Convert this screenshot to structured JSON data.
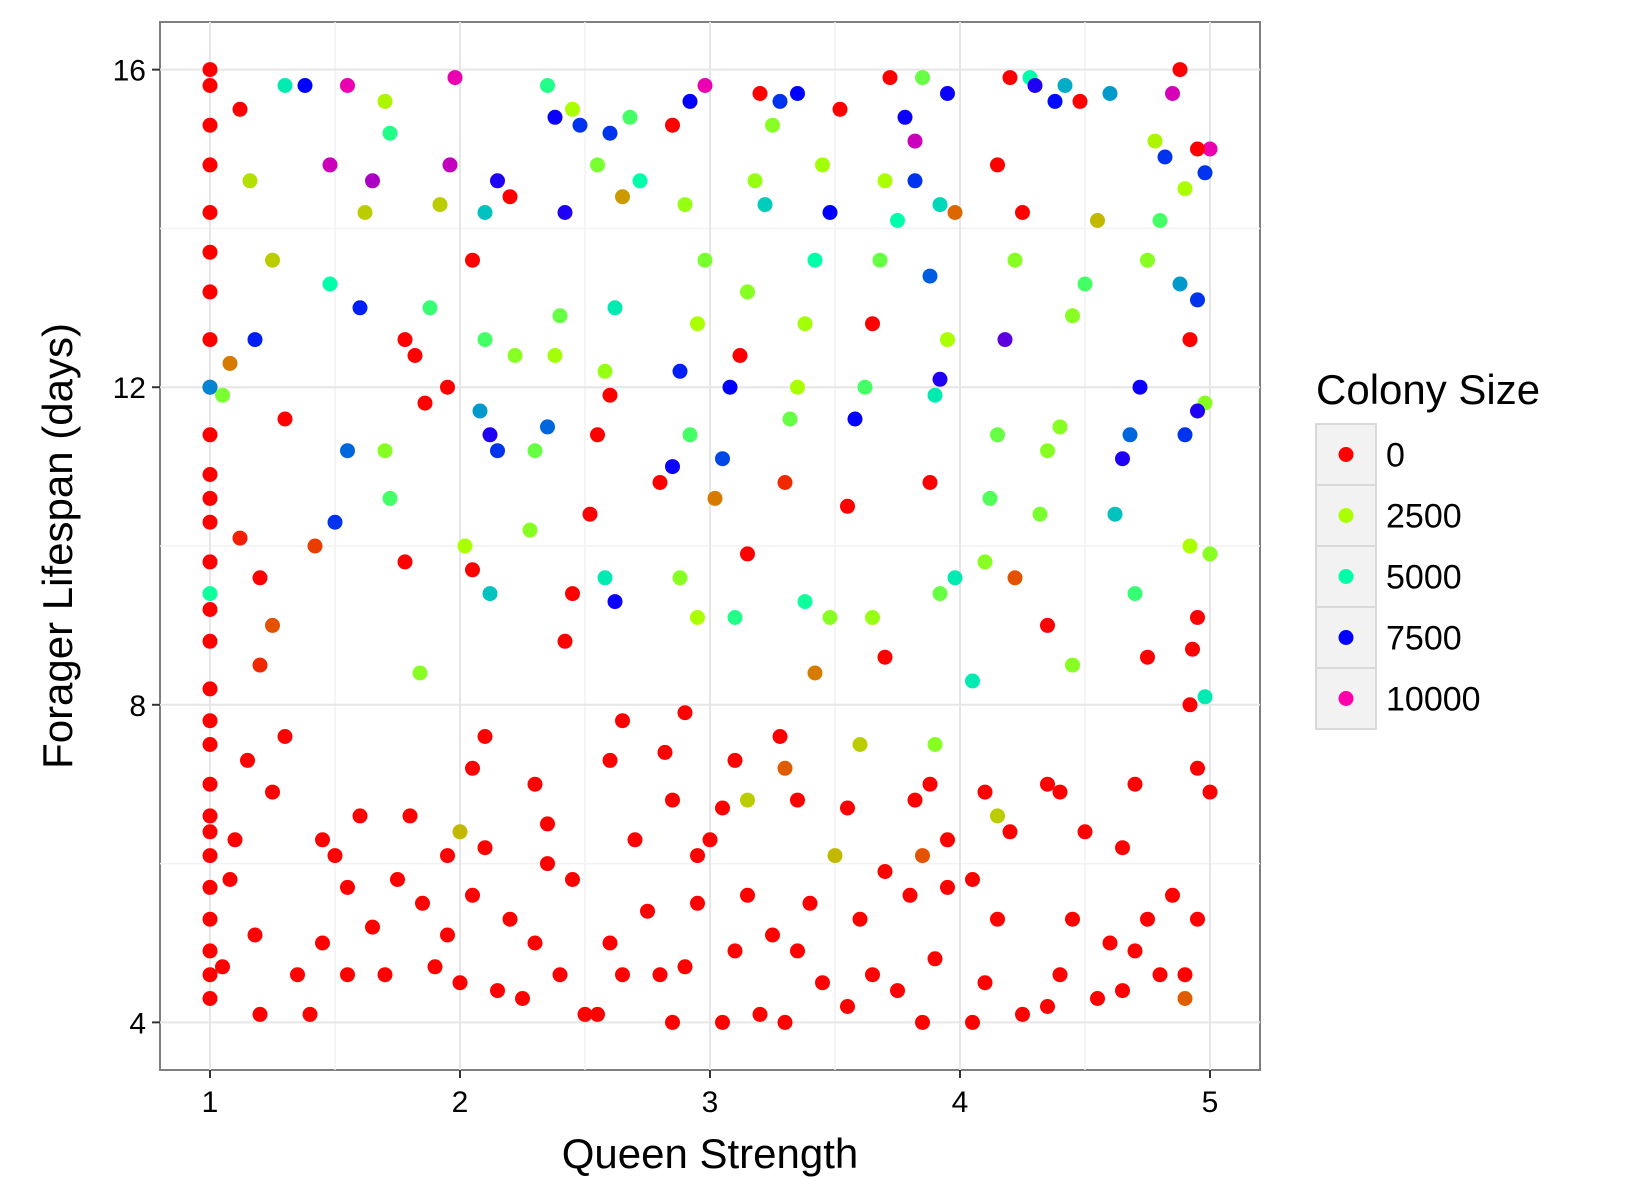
{
  "chart_data": {
    "type": "scatter",
    "title": "",
    "xlabel": "Queen Strength",
    "ylabel": "Forager Lifespan (days)",
    "xlim": [
      0.8,
      5.2
    ],
    "ylim": [
      3.4,
      16.6
    ],
    "x_ticks": [
      1,
      2,
      3,
      4,
      5
    ],
    "x_tick_labels": [
      "1",
      "2",
      "3",
      "4",
      "5"
    ],
    "y_ticks": [
      4,
      8,
      12,
      16
    ],
    "y_tick_labels": [
      "4",
      "8",
      "12",
      "16"
    ],
    "grid": true,
    "legend": {
      "title": "Colony Size",
      "placement": "right",
      "entries": [
        {
          "label": "0",
          "value": 0
        },
        {
          "label": "2500",
          "value": 2500
        },
        {
          "label": "5000",
          "value": 5000
        },
        {
          "label": "7500",
          "value": 7500
        },
        {
          "label": "10000",
          "value": 10000
        }
      ]
    },
    "color_scale": {
      "domain": [
        0,
        2500,
        5000,
        7500,
        10000
      ],
      "colors": [
        "#ff0000",
        "#aaff00",
        "#00ffaa",
        "#0000ff",
        "#ff00aa"
      ]
    },
    "points": [
      [
        1.0,
        4.3,
        0
      ],
      [
        1.0,
        4.9,
        0
      ],
      [
        1.0,
        5.3,
        0
      ],
      [
        1.0,
        5.7,
        0
      ],
      [
        1.0,
        6.1,
        0
      ],
      [
        1.0,
        6.6,
        0
      ],
      [
        1.0,
        7.0,
        0
      ],
      [
        1.0,
        7.5,
        0
      ],
      [
        1.0,
        8.2,
        0
      ],
      [
        1.0,
        8.8,
        0
      ],
      [
        1.0,
        9.2,
        0
      ],
      [
        1.0,
        9.8,
        0
      ],
      [
        1.0,
        10.3,
        0
      ],
      [
        1.0,
        10.9,
        0
      ],
      [
        1.0,
        11.4,
        0
      ],
      [
        1.0,
        12.0,
        0
      ],
      [
        1.0,
        12.6,
        0
      ],
      [
        1.0,
        13.2,
        0
      ],
      [
        1.0,
        13.7,
        0
      ],
      [
        1.0,
        14.2,
        0
      ],
      [
        1.0,
        14.8,
        0
      ],
      [
        1.0,
        15.3,
        0
      ],
      [
        1.0,
        15.8,
        0
      ],
      [
        1.0,
        16.0,
        0
      ],
      [
        1.0,
        9.4,
        4800
      ],
      [
        1.0,
        12.0,
        6200
      ],
      [
        1.0,
        4.6,
        0
      ],
      [
        1.0,
        6.4,
        0
      ],
      [
        1.0,
        7.8,
        0
      ],
      [
        1.0,
        10.6,
        0
      ],
      [
        1.05,
        4.7,
        0
      ],
      [
        1.08,
        5.8,
        0
      ],
      [
        1.1,
        6.3,
        0
      ],
      [
        1.15,
        7.3,
        0
      ],
      [
        1.18,
        5.1,
        0
      ],
      [
        1.2,
        4.1,
        0
      ],
      [
        1.25,
        6.9,
        0
      ],
      [
        1.3,
        7.6,
        0
      ],
      [
        1.12,
        15.5,
        0
      ],
      [
        1.16,
        14.6,
        2200
      ],
      [
        1.25,
        13.6,
        2000
      ],
      [
        1.3,
        15.8,
        5200
      ],
      [
        1.38,
        15.8,
        7500
      ],
      [
        1.18,
        12.6,
        7200
      ],
      [
        1.05,
        11.9,
        3200
      ],
      [
        1.08,
        12.3,
        1200
      ],
      [
        1.12,
        10.1,
        300
      ],
      [
        1.2,
        9.6,
        0
      ],
      [
        1.25,
        9.0,
        800
      ],
      [
        1.2,
        8.5,
        400
      ],
      [
        1.35,
        4.6,
        0
      ],
      [
        1.4,
        4.1,
        0
      ],
      [
        1.45,
        5.0,
        0
      ],
      [
        1.5,
        6.1,
        0
      ],
      [
        1.55,
        5.7,
        0
      ],
      [
        1.6,
        6.6,
        0
      ],
      [
        1.45,
        6.3,
        0
      ],
      [
        1.55,
        4.6,
        0
      ],
      [
        1.3,
        11.6,
        0
      ],
      [
        1.42,
        10.0,
        600
      ],
      [
        1.5,
        10.3,
        7000
      ],
      [
        1.55,
        11.2,
        6500
      ],
      [
        1.6,
        13.0,
        7200
      ],
      [
        1.48,
        14.8,
        9500
      ],
      [
        1.55,
        15.8,
        9800
      ],
      [
        1.65,
        14.6,
        9200
      ],
      [
        1.7,
        15.6,
        2400
      ],
      [
        1.72,
        15.2,
        4500
      ],
      [
        1.62,
        14.2,
        2000
      ],
      [
        1.48,
        13.3,
        5000
      ],
      [
        1.65,
        5.2,
        0
      ],
      [
        1.7,
        4.6,
        0
      ],
      [
        1.75,
        5.8,
        0
      ],
      [
        1.8,
        6.6,
        0
      ],
      [
        1.85,
        5.5,
        0
      ],
      [
        1.9,
        4.7,
        0
      ],
      [
        1.95,
        6.1,
        0
      ],
      [
        1.95,
        5.1,
        0
      ],
      [
        1.72,
        10.6,
        4000
      ],
      [
        1.7,
        11.2,
        3000
      ],
      [
        1.78,
        12.6,
        0
      ],
      [
        1.82,
        12.4,
        0
      ],
      [
        1.86,
        11.8,
        0
      ],
      [
        1.88,
        13.0,
        4200
      ],
      [
        1.92,
        14.3,
        2000
      ],
      [
        1.95,
        12.0,
        0
      ],
      [
        1.98,
        15.9,
        9800
      ],
      [
        1.96,
        14.8,
        9400
      ],
      [
        1.78,
        9.8,
        0
      ],
      [
        1.84,
        8.4,
        3000
      ],
      [
        2.0,
        4.5,
        0
      ],
      [
        2.05,
        5.6,
        0
      ],
      [
        2.1,
        6.2,
        0
      ],
      [
        2.15,
        4.4,
        0
      ],
      [
        2.2,
        5.3,
        0
      ],
      [
        2.05,
        7.2,
        0
      ],
      [
        2.1,
        7.6,
        0
      ],
      [
        2.0,
        6.4,
        1800
      ],
      [
        2.02,
        10.0,
        2500
      ],
      [
        2.08,
        11.7,
        6000
      ],
      [
        2.12,
        11.4,
        7800
      ],
      [
        2.15,
        11.2,
        7000
      ],
      [
        2.1,
        12.6,
        4000
      ],
      [
        2.05,
        13.6,
        0
      ],
      [
        2.1,
        14.2,
        5600
      ],
      [
        2.15,
        14.6,
        7800
      ],
      [
        2.2,
        14.4,
        0
      ],
      [
        2.22,
        12.4,
        3000
      ],
      [
        2.05,
        9.7,
        0
      ],
      [
        2.12,
        9.4,
        5600
      ],
      [
        2.25,
        4.3,
        0
      ],
      [
        2.3,
        5.0,
        0
      ],
      [
        2.35,
        6.0,
        0
      ],
      [
        2.4,
        4.6,
        0
      ],
      [
        2.45,
        5.8,
        0
      ],
      [
        2.5,
        4.1,
        0
      ],
      [
        2.3,
        7.0,
        0
      ],
      [
        2.35,
        6.5,
        0
      ],
      [
        2.28,
        10.2,
        3000
      ],
      [
        2.3,
        11.2,
        3500
      ],
      [
        2.35,
        11.5,
        6500
      ],
      [
        2.38,
        12.4,
        2600
      ],
      [
        2.4,
        12.9,
        3500
      ],
      [
        2.42,
        14.2,
        7800
      ],
      [
        2.38,
        15.4,
        7600
      ],
      [
        2.45,
        15.5,
        2500
      ],
      [
        2.48,
        15.3,
        7000
      ],
      [
        2.35,
        15.8,
        4500
      ],
      [
        2.42,
        8.8,
        0
      ],
      [
        2.45,
        9.4,
        0
      ],
      [
        2.55,
        4.1,
        0
      ],
      [
        2.6,
        5.0,
        0
      ],
      [
        2.65,
        4.6,
        0
      ],
      [
        2.7,
        6.3,
        0
      ],
      [
        2.75,
        5.4,
        0
      ],
      [
        2.8,
        4.6,
        0
      ],
      [
        2.6,
        7.3,
        0
      ],
      [
        2.65,
        7.8,
        0
      ],
      [
        2.52,
        10.4,
        0
      ],
      [
        2.55,
        11.4,
        0
      ],
      [
        2.6,
        11.9,
        0
      ],
      [
        2.58,
        12.2,
        2800
      ],
      [
        2.62,
        13.0,
        5200
      ],
      [
        2.65,
        14.4,
        1500
      ],
      [
        2.6,
        15.2,
        7000
      ],
      [
        2.55,
        14.8,
        3200
      ],
      [
        2.68,
        15.4,
        4000
      ],
      [
        2.72,
        14.6,
        5000
      ],
      [
        2.58,
        9.6,
        5200
      ],
      [
        2.62,
        9.3,
        7600
      ],
      [
        2.85,
        4.0,
        0
      ],
      [
        2.9,
        4.7,
        0
      ],
      [
        2.95,
        5.5,
        0
      ],
      [
        3.0,
        6.3,
        0
      ],
      [
        2.85,
        6.8,
        0
      ],
      [
        2.9,
        7.9,
        0
      ],
      [
        2.95,
        6.1,
        0
      ],
      [
        2.82,
        7.4,
        0
      ],
      [
        2.8,
        10.8,
        0
      ],
      [
        2.85,
        11.0,
        7600
      ],
      [
        2.88,
        12.2,
        7200
      ],
      [
        2.92,
        11.4,
        4000
      ],
      [
        2.95,
        12.8,
        2500
      ],
      [
        2.98,
        13.6,
        3200
      ],
      [
        2.9,
        14.3,
        2800
      ],
      [
        2.85,
        15.3,
        0
      ],
      [
        2.92,
        15.6,
        7500
      ],
      [
        2.98,
        15.8,
        9800
      ],
      [
        2.88,
        9.6,
        3000
      ],
      [
        2.95,
        9.1,
        2500
      ],
      [
        3.05,
        4.0,
        0
      ],
      [
        3.1,
        4.9,
        0
      ],
      [
        3.15,
        5.6,
        0
      ],
      [
        3.2,
        4.1,
        0
      ],
      [
        3.25,
        5.1,
        0
      ],
      [
        3.05,
        6.7,
        0
      ],
      [
        3.1,
        7.3,
        0
      ],
      [
        3.15,
        6.8,
        2000
      ],
      [
        3.02,
        10.6,
        1200
      ],
      [
        3.05,
        11.1,
        6800
      ],
      [
        3.08,
        12.0,
        7500
      ],
      [
        3.12,
        12.4,
        0
      ],
      [
        3.15,
        13.2,
        3000
      ],
      [
        3.18,
        14.6,
        2800
      ],
      [
        3.2,
        15.7,
        0
      ],
      [
        3.25,
        15.3,
        3000
      ],
      [
        3.28,
        15.6,
        7000
      ],
      [
        3.22,
        14.3,
        5500
      ],
      [
        3.1,
        9.1,
        4500
      ],
      [
        3.15,
        9.9,
        0
      ],
      [
        3.3,
        4.0,
        0
      ],
      [
        3.35,
        4.9,
        0
      ],
      [
        3.4,
        5.5,
        0
      ],
      [
        3.45,
        4.5,
        0
      ],
      [
        3.5,
        6.1,
        1800
      ],
      [
        3.3,
        7.2,
        900
      ],
      [
        3.35,
        6.8,
        0
      ],
      [
        3.28,
        7.6,
        0
      ],
      [
        3.3,
        10.8,
        400
      ],
      [
        3.32,
        11.6,
        3500
      ],
      [
        3.35,
        12.0,
        2500
      ],
      [
        3.38,
        12.8,
        2600
      ],
      [
        3.42,
        13.6,
        5000
      ],
      [
        3.45,
        14.8,
        2600
      ],
      [
        3.48,
        14.2,
        7500
      ],
      [
        3.35,
        15.7,
        7500
      ],
      [
        3.52,
        15.5,
        0
      ],
      [
        3.42,
        8.4,
        1200
      ],
      [
        3.48,
        9.1,
        3000
      ],
      [
        3.38,
        9.3,
        4800
      ],
      [
        3.55,
        4.2,
        0
      ],
      [
        3.6,
        5.3,
        0
      ],
      [
        3.65,
        4.6,
        0
      ],
      [
        3.7,
        5.9,
        0
      ],
      [
        3.75,
        4.4,
        0
      ],
      [
        3.8,
        5.6,
        0
      ],
      [
        3.55,
        6.7,
        0
      ],
      [
        3.6,
        7.5,
        2000
      ],
      [
        3.55,
        10.5,
        0
      ],
      [
        3.58,
        11.6,
        7500
      ],
      [
        3.62,
        12.0,
        4000
      ],
      [
        3.65,
        12.8,
        0
      ],
      [
        3.68,
        13.6,
        3500
      ],
      [
        3.7,
        14.6,
        2500
      ],
      [
        3.72,
        15.9,
        0
      ],
      [
        3.75,
        14.1,
        5000
      ],
      [
        3.78,
        15.4,
        7600
      ],
      [
        3.82,
        15.1,
        9500
      ],
      [
        3.65,
        9.1,
        2800
      ],
      [
        3.7,
        8.6,
        0
      ],
      [
        3.85,
        4.0,
        0
      ],
      [
        3.9,
        4.8,
        0
      ],
      [
        3.95,
        5.7,
        0
      ],
      [
        3.85,
        6.1,
        800
      ],
      [
        3.9,
        7.5,
        3000
      ],
      [
        3.95,
        6.3,
        0
      ],
      [
        3.88,
        7.0,
        0
      ],
      [
        3.82,
        6.8,
        0
      ],
      [
        3.88,
        10.8,
        0
      ],
      [
        3.9,
        11.9,
        5200
      ],
      [
        3.92,
        12.1,
        7800
      ],
      [
        3.95,
        12.6,
        2500
      ],
      [
        3.88,
        13.4,
        6600
      ],
      [
        3.92,
        14.3,
        5400
      ],
      [
        3.85,
        15.9,
        3500
      ],
      [
        3.95,
        15.7,
        7600
      ],
      [
        3.98,
        14.2,
        1000
      ],
      [
        3.82,
        14.6,
        7000
      ],
      [
        3.92,
        9.4,
        3500
      ],
      [
        3.98,
        9.6,
        5200
      ],
      [
        4.05,
        4.0,
        0
      ],
      [
        4.1,
        4.5,
        0
      ],
      [
        4.15,
        5.3,
        0
      ],
      [
        4.2,
        6.4,
        0
      ],
      [
        4.25,
        4.1,
        0
      ],
      [
        4.05,
        5.8,
        0
      ],
      [
        4.1,
        6.9,
        0
      ],
      [
        4.15,
        6.6,
        2000
      ],
      [
        4.05,
        8.3,
        5200
      ],
      [
        4.1,
        9.8,
        3000
      ],
      [
        4.12,
        10.6,
        3800
      ],
      [
        4.15,
        11.4,
        3500
      ],
      [
        4.18,
        12.6,
        8400
      ],
      [
        4.22,
        13.6,
        3000
      ],
      [
        4.25,
        14.2,
        0
      ],
      [
        4.15,
        14.8,
        0
      ],
      [
        4.2,
        15.9,
        0
      ],
      [
        4.28,
        15.9,
        5000
      ],
      [
        4.3,
        15.8,
        7800
      ],
      [
        4.22,
        9.6,
        800
      ],
      [
        4.35,
        4.2,
        0
      ],
      [
        4.4,
        4.6,
        0
      ],
      [
        4.45,
        5.3,
        0
      ],
      [
        4.5,
        6.4,
        0
      ],
      [
        4.55,
        4.3,
        0
      ],
      [
        4.6,
        5.0,
        0
      ],
      [
        4.35,
        7.0,
        0
      ],
      [
        4.4,
        6.9,
        0
      ],
      [
        4.32,
        10.4,
        3200
      ],
      [
        4.35,
        11.2,
        3000
      ],
      [
        4.4,
        11.5,
        3000
      ],
      [
        4.45,
        12.9,
        3000
      ],
      [
        4.5,
        13.3,
        4000
      ],
      [
        4.55,
        14.1,
        1800
      ],
      [
        4.6,
        15.7,
        6000
      ],
      [
        4.48,
        15.6,
        0
      ],
      [
        4.38,
        15.6,
        7400
      ],
      [
        4.42,
        15.8,
        5800
      ],
      [
        4.35,
        9.0,
        0
      ],
      [
        4.45,
        8.5,
        3000
      ],
      [
        4.65,
        4.4,
        0
      ],
      [
        4.7,
        4.9,
        0
      ],
      [
        4.75,
        5.3,
        0
      ],
      [
        4.8,
        4.6,
        0
      ],
      [
        4.85,
        5.6,
        0
      ],
      [
        4.9,
        4.3,
        900
      ],
      [
        4.65,
        6.2,
        0
      ],
      [
        4.7,
        7.0,
        0
      ],
      [
        4.62,
        10.4,
        5600
      ],
      [
        4.65,
        11.1,
        7800
      ],
      [
        4.68,
        11.4,
        6500
      ],
      [
        4.72,
        12.0,
        7600
      ],
      [
        4.75,
        13.6,
        3000
      ],
      [
        4.8,
        14.1,
        4000
      ],
      [
        4.82,
        14.9,
        7000
      ],
      [
        4.85,
        15.7,
        9600
      ],
      [
        4.88,
        16.0,
        0
      ],
      [
        4.78,
        15.1,
        2400
      ],
      [
        4.7,
        9.4,
        4200
      ],
      [
        4.75,
        8.6,
        0
      ],
      [
        4.9,
        4.6,
        0
      ],
      [
        4.95,
        5.3,
        0
      ],
      [
        5.0,
        6.9,
        0
      ],
      [
        4.95,
        7.2,
        0
      ],
      [
        4.92,
        8.0,
        0
      ],
      [
        4.95,
        9.1,
        0
      ],
      [
        5.0,
        9.9,
        3000
      ],
      [
        4.98,
        11.8,
        3000
      ],
      [
        4.95,
        11.7,
        7800
      ],
      [
        4.9,
        11.4,
        7000
      ],
      [
        4.92,
        12.6,
        0
      ],
      [
        4.95,
        13.1,
        7000
      ],
      [
        4.98,
        14.7,
        7000
      ],
      [
        5.0,
        15.0,
        9800
      ],
      [
        4.95,
        15.0,
        0
      ],
      [
        4.9,
        14.5,
        2500
      ],
      [
        4.88,
        13.3,
        6000
      ],
      [
        4.93,
        8.7,
        0
      ],
      [
        4.98,
        8.1,
        5200
      ],
      [
        4.92,
        10.0,
        2500
      ]
    ]
  }
}
